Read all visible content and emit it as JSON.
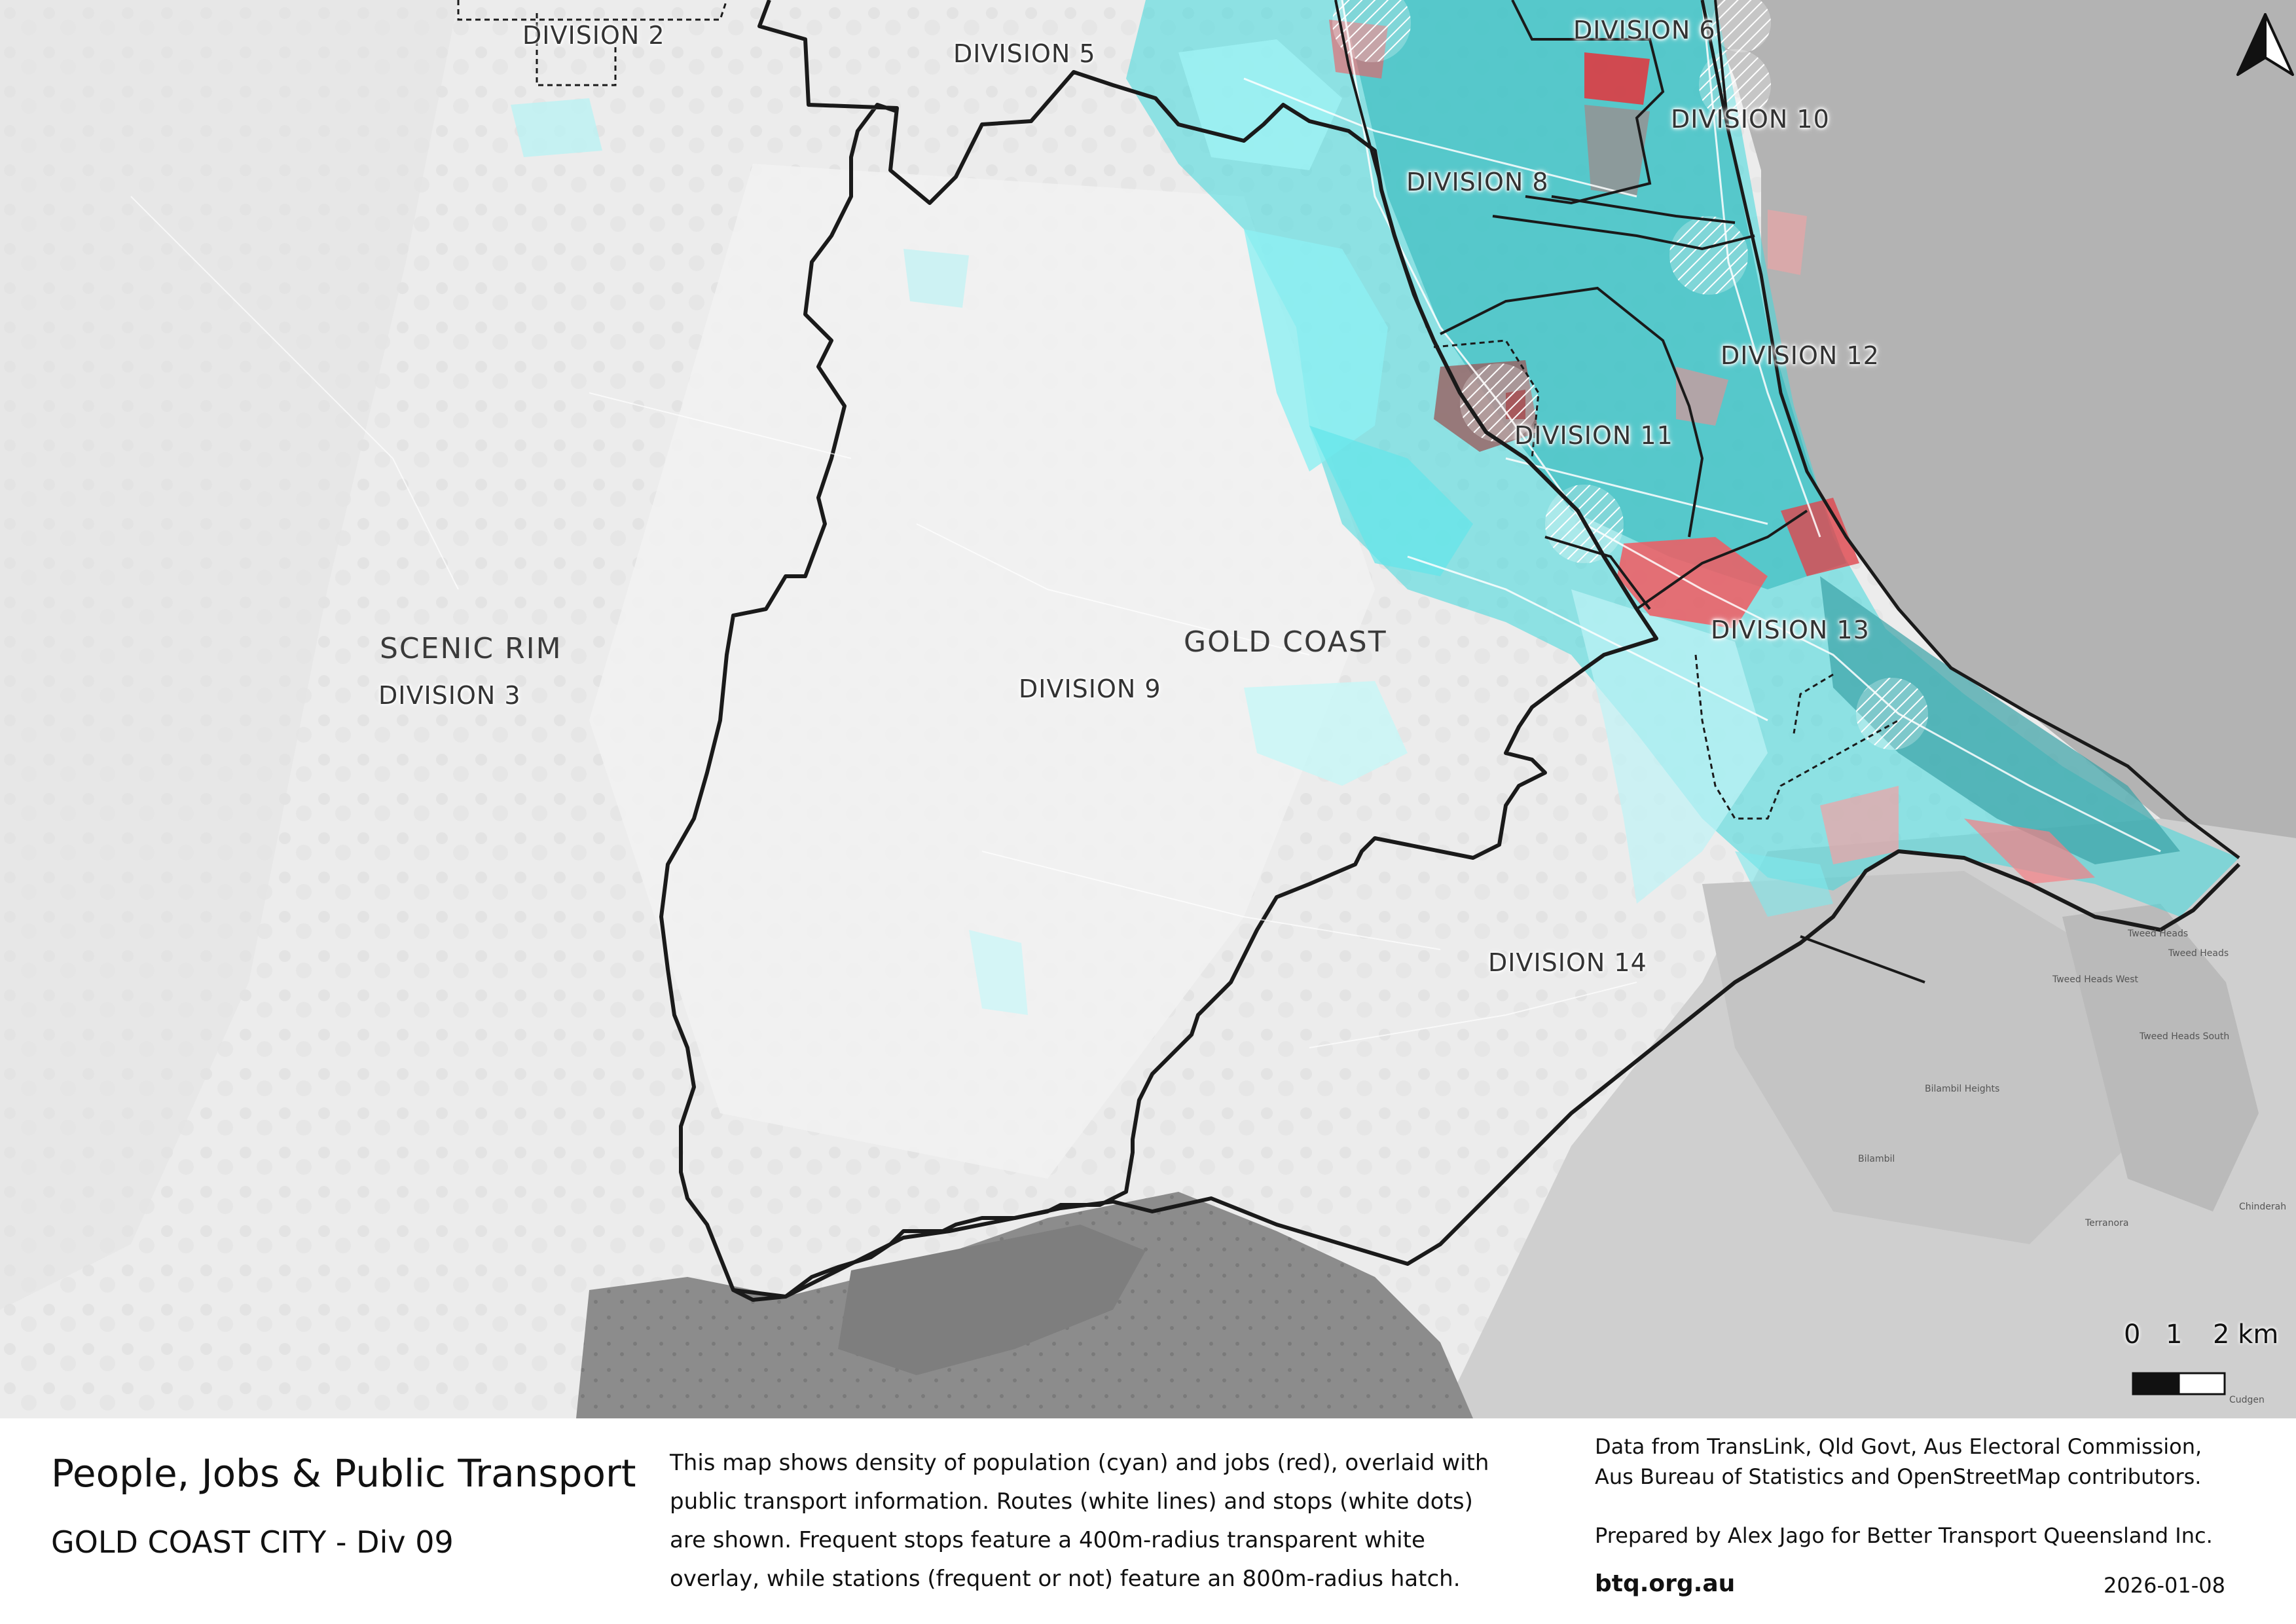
{
  "map": {
    "regions": {
      "scenic_rim": "SCENIC RIM",
      "gold_coast": "GOLD COAST"
    },
    "divisions": {
      "div2": "DIVISION 2",
      "div3": "DIVISION 3",
      "div5": "DIVISION 5",
      "div6": "DIVISION 6",
      "div8": "DIVISION 8",
      "div9": "DIVISION 9",
      "div10": "DIVISION 10",
      "div11": "DIVISION 11",
      "div12": "DIVISION 12",
      "div13": "DIVISION 13",
      "div14": "DIVISION 14"
    },
    "places": {
      "tweed_heads": "Tweed Heads",
      "tweed_heads_west": "Tweed Heads West",
      "tweed_heads_south": "Tweed Heads South",
      "bilambil_heights": "Bilambil Heights",
      "bilambil": "Bilambil",
      "terranora": "Terranora",
      "chinderah": "Chinderah",
      "cudgen": "Cudgen"
    },
    "colors": {
      "population": "#33e4e8",
      "jobs": "#f25a61",
      "ocean": "#b3b3b3",
      "boundary": "#1a1a1a"
    },
    "scale_bar": {
      "ticks": [
        "0",
        "1",
        "2 km"
      ]
    },
    "north_arrow": "north-arrow-icon"
  },
  "footer": {
    "title": "People, Jobs & Public Transport",
    "subtitle": "GOLD COAST CITY - Div 09",
    "description": [
      "This map shows density of population (cyan) and jobs (red), overlaid with",
      "public transport information. Routes (white lines) and stops (white dots)",
      "are shown. Frequent stops feature a 400m-radius transparent white",
      "overlay, while stations (frequent or not) feature an 800m-radius hatch."
    ],
    "sources": [
      "Data from TransLink,  Qld Govt,  Aus Electoral Commission,",
      "Aus Bureau of Statistics and OpenStreetMap contributors."
    ],
    "prepared_by": "Prepared by Alex Jago for Better Transport Queensland Inc.",
    "website": "btq.org.au",
    "date": "2026-01-08"
  }
}
